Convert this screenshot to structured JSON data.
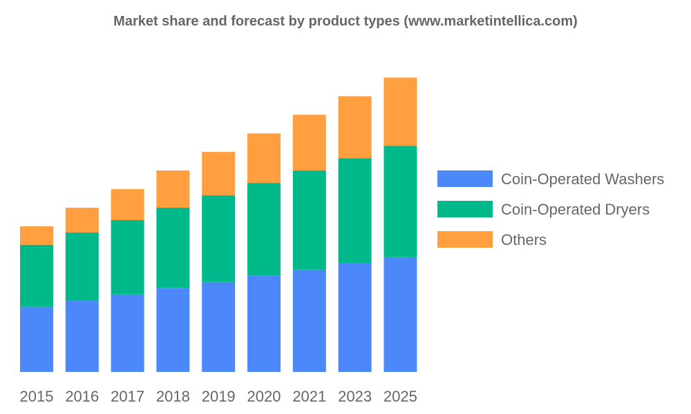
{
  "chart_data": {
    "type": "bar",
    "stacked": true,
    "title": "Market share and forecast by product types (www.marketintellica.com)",
    "categories": [
      "2015",
      "2016",
      "2017",
      "2018",
      "2019",
      "2020",
      "2021",
      "2023",
      "2025"
    ],
    "series": [
      {
        "name": "Coin-Operated Washers",
        "color": "#4d88fa",
        "values": [
          10.5,
          11.5,
          12.5,
          13.5,
          14.5,
          15.5,
          16.5,
          17.5,
          18.5
        ]
      },
      {
        "name": "Coin-Operated Dryers",
        "color": "#00b98a",
        "values": [
          10,
          11,
          12,
          13,
          14,
          15,
          16,
          17,
          18
        ]
      },
      {
        "name": "Others",
        "color": "#ff9f40",
        "values": [
          3,
          4,
          5,
          6,
          7,
          8,
          9,
          10,
          11
        ]
      }
    ],
    "ylim": [
      0,
      50
    ],
    "grid": false,
    "legend": "right"
  }
}
